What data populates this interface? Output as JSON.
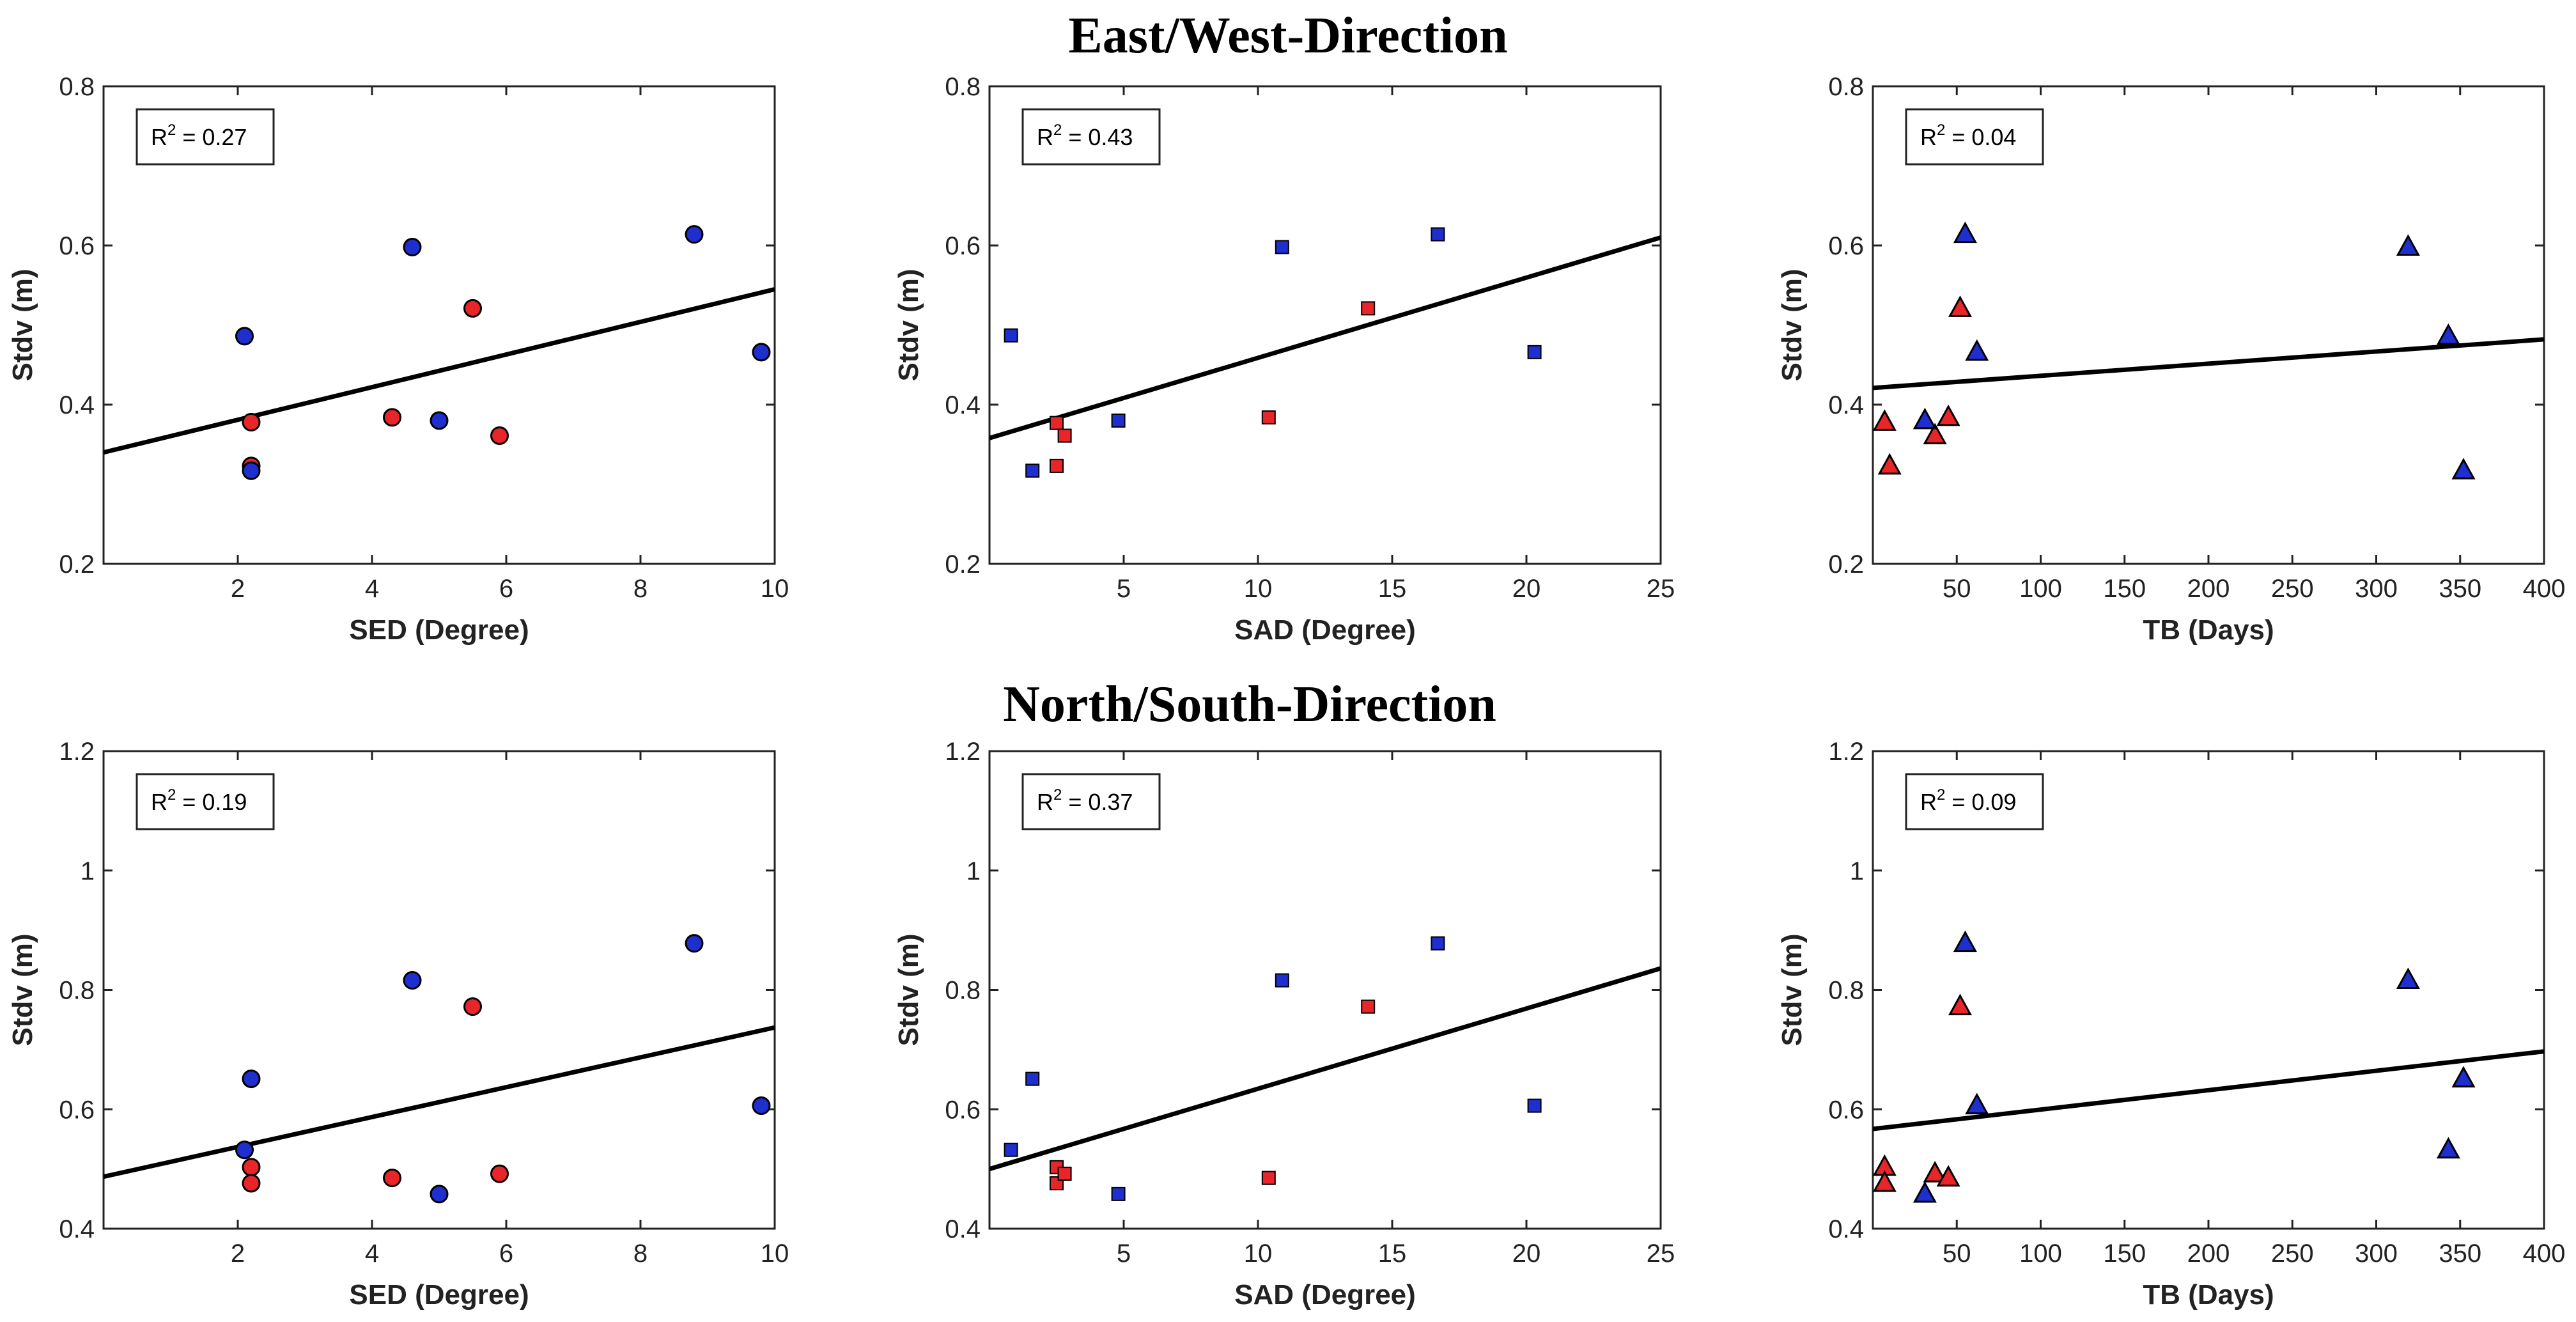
{
  "section_titles": {
    "east_west": "East/West-Direction",
    "north_south": "North/South-Direction"
  },
  "colors": {
    "red": "#e8262a",
    "blue": "#1f2fcf",
    "fit_line": "#000000"
  },
  "chart_data": [
    {
      "id": "ew-sed",
      "type": "scatter",
      "marker": "circle",
      "xlabel": "SED (Degree)",
      "ylabel": "Stdv (m)",
      "r2_value": "0.27",
      "xlim": [
        0,
        10
      ],
      "ylim": [
        0.2,
        0.8
      ],
      "xticks": [
        "2",
        "4",
        "6",
        "8",
        "10"
      ],
      "xtick_values": [
        2,
        4,
        6,
        8,
        10
      ],
      "yticks": [
        "0.2",
        "0.4",
        "0.6",
        "0.8"
      ],
      "ytick_values": [
        0.2,
        0.4,
        0.6,
        0.8
      ],
      "fit_line": {
        "x": [
          0,
          10
        ],
        "y": [
          0.34,
          0.545
        ]
      },
      "series": [
        {
          "name": "red",
          "points": [
            [
              2.2,
              0.378
            ],
            [
              2.2,
              0.323
            ],
            [
              4.3,
              0.384
            ],
            [
              5.5,
              0.521
            ],
            [
              5.9,
              0.361
            ]
          ]
        },
        {
          "name": "blue",
          "points": [
            [
              2.1,
              0.486
            ],
            [
              2.2,
              0.317
            ],
            [
              4.6,
              0.598
            ],
            [
              5.0,
              0.38
            ],
            [
              8.8,
              0.614
            ],
            [
              9.8,
              0.466
            ]
          ]
        }
      ]
    },
    {
      "id": "ew-sad",
      "type": "scatter",
      "marker": "square",
      "xlabel": "SAD (Degree)",
      "ylabel": "Stdv (m)",
      "r2_value": "0.43",
      "xlim": [
        0,
        25
      ],
      "ylim": [
        0.2,
        0.8
      ],
      "xticks": [
        "5",
        "10",
        "15",
        "20",
        "25"
      ],
      "xtick_values": [
        5,
        10,
        15,
        20,
        25
      ],
      "yticks": [
        "0.2",
        "0.4",
        "0.6",
        "0.8"
      ],
      "ytick_values": [
        0.2,
        0.4,
        0.6,
        0.8
      ],
      "fit_line": {
        "x": [
          0,
          25
        ],
        "y": [
          0.358,
          0.61
        ]
      },
      "series": [
        {
          "name": "red",
          "points": [
            [
              2.5,
              0.377
            ],
            [
              2.5,
              0.323
            ],
            [
              2.8,
              0.361
            ],
            [
              10.4,
              0.384
            ],
            [
              14.1,
              0.521
            ]
          ]
        },
        {
          "name": "blue",
          "points": [
            [
              0.8,
              0.487
            ],
            [
              1.6,
              0.317
            ],
            [
              4.8,
              0.38
            ],
            [
              10.9,
              0.598
            ],
            [
              16.7,
              0.614
            ],
            [
              20.3,
              0.466
            ]
          ]
        }
      ]
    },
    {
      "id": "ew-tb",
      "type": "scatter",
      "marker": "triangle",
      "xlabel": "TB (Days)",
      "ylabel": "Stdv (m)",
      "r2_value": "0.04",
      "xlim": [
        0,
        400
      ],
      "ylim": [
        0.2,
        0.8
      ],
      "xticks": [
        "50",
        "100",
        "150",
        "200",
        "250",
        "300",
        "350",
        "400"
      ],
      "xtick_values": [
        50,
        100,
        150,
        200,
        250,
        300,
        350,
        400
      ],
      "yticks": [
        "0.2",
        "0.4",
        "0.6",
        "0.8"
      ],
      "ytick_values": [
        0.2,
        0.4,
        0.6,
        0.8
      ],
      "fit_line": {
        "x": [
          0,
          400
        ],
        "y": [
          0.421,
          0.482
        ]
      },
      "series": [
        {
          "name": "red",
          "points": [
            [
              7,
              0.378
            ],
            [
              10,
              0.323
            ],
            [
              37,
              0.361
            ],
            [
              45,
              0.384
            ],
            [
              52,
              0.521
            ]
          ]
        },
        {
          "name": "blue",
          "points": [
            [
              31,
              0.38
            ],
            [
              55,
              0.614
            ],
            [
              62,
              0.466
            ],
            [
              319,
              0.598
            ],
            [
              343,
              0.486
            ],
            [
              352,
              0.317
            ]
          ]
        }
      ]
    },
    {
      "id": "ns-sed",
      "type": "scatter",
      "marker": "circle",
      "xlabel": "SED (Degree)",
      "ylabel": "Stdv (m)",
      "r2_value": "0.19",
      "xlim": [
        0,
        10
      ],
      "ylim": [
        0.4,
        1.2
      ],
      "xticks": [
        "2",
        "4",
        "6",
        "8",
        "10"
      ],
      "xtick_values": [
        2,
        4,
        6,
        8,
        10
      ],
      "yticks": [
        "0.4",
        "0.6",
        "0.8",
        "1",
        "1.2"
      ],
      "ytick_values": [
        0.4,
        0.6,
        0.8,
        1.0,
        1.2
      ],
      "fit_line": {
        "x": [
          0,
          10
        ],
        "y": [
          0.487,
          0.737
        ]
      },
      "series": [
        {
          "name": "red",
          "points": [
            [
              2.2,
              0.503
            ],
            [
              2.2,
              0.476
            ],
            [
              4.3,
              0.485
            ],
            [
              5.5,
              0.772
            ],
            [
              5.9,
              0.492
            ]
          ]
        },
        {
          "name": "blue",
          "points": [
            [
              2.1,
              0.532
            ],
            [
              2.2,
              0.651
            ],
            [
              4.6,
              0.816
            ],
            [
              5.0,
              0.458
            ],
            [
              8.8,
              0.878
            ],
            [
              9.8,
              0.606
            ]
          ]
        }
      ]
    },
    {
      "id": "ns-sad",
      "type": "scatter",
      "marker": "square",
      "xlabel": "SAD (Degree)",
      "ylabel": "Stdv (m)",
      "r2_value": "0.37",
      "xlim": [
        0,
        25
      ],
      "ylim": [
        0.4,
        1.2
      ],
      "xticks": [
        "5",
        "10",
        "15",
        "20",
        "25"
      ],
      "xtick_values": [
        5,
        10,
        15,
        20,
        25
      ],
      "yticks": [
        "0.4",
        "0.6",
        "0.8",
        "1",
        "1.2"
      ],
      "ytick_values": [
        0.4,
        0.6,
        0.8,
        1.0,
        1.2
      ],
      "fit_line": {
        "x": [
          0,
          25
        ],
        "y": [
          0.5,
          0.836
        ]
      },
      "series": [
        {
          "name": "red",
          "points": [
            [
              2.5,
              0.503
            ],
            [
              2.5,
              0.476
            ],
            [
              2.8,
              0.492
            ],
            [
              10.4,
              0.485
            ],
            [
              14.1,
              0.772
            ]
          ]
        },
        {
          "name": "blue",
          "points": [
            [
              0.8,
              0.532
            ],
            [
              1.6,
              0.651
            ],
            [
              4.8,
              0.458
            ],
            [
              10.9,
              0.816
            ],
            [
              16.7,
              0.878
            ],
            [
              20.3,
              0.606
            ]
          ]
        }
      ]
    },
    {
      "id": "ns-tb",
      "type": "scatter",
      "marker": "triangle",
      "xlabel": "TB (Days)",
      "ylabel": "Stdv (m)",
      "r2_value": "0.09",
      "xlim": [
        0,
        400
      ],
      "ylim": [
        0.4,
        1.2
      ],
      "xticks": [
        "50",
        "100",
        "150",
        "200",
        "250",
        "300",
        "350",
        "400"
      ],
      "xtick_values": [
        50,
        100,
        150,
        200,
        250,
        300,
        350,
        400
      ],
      "yticks": [
        "0.4",
        "0.6",
        "0.8",
        "1",
        "1.2"
      ],
      "ytick_values": [
        0.4,
        0.6,
        0.8,
        1.0,
        1.2
      ],
      "fit_line": {
        "x": [
          0,
          400
        ],
        "y": [
          0.567,
          0.697
        ]
      },
      "series": [
        {
          "name": "red",
          "points": [
            [
              7,
              0.503
            ],
            [
              7,
              0.476
            ],
            [
              37,
              0.492
            ],
            [
              45,
              0.485
            ],
            [
              52,
              0.772
            ]
          ]
        },
        {
          "name": "blue",
          "points": [
            [
              31,
              0.458
            ],
            [
              55,
              0.878
            ],
            [
              62,
              0.606
            ],
            [
              319,
              0.816
            ],
            [
              343,
              0.532
            ],
            [
              352,
              0.651
            ]
          ]
        }
      ]
    }
  ]
}
